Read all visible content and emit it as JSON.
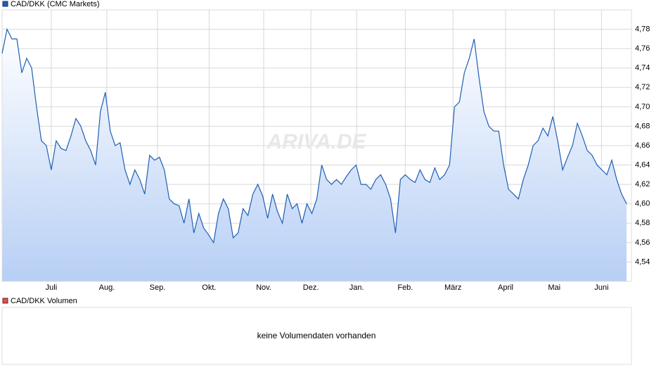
{
  "chart_data": [
    {
      "type": "line",
      "watermark": "ARIVA.DE",
      "series": [
        {
          "name": "CAD/DKK (CMC Markets)",
          "color": "#1f5fb4",
          "values": [
            4.755,
            4.78,
            4.77,
            4.77,
            4.735,
            4.75,
            4.74,
            4.7,
            4.665,
            4.66,
            4.635,
            4.665,
            4.657,
            4.655,
            4.67,
            4.688,
            4.68,
            4.665,
            4.655,
            4.64,
            4.695,
            4.715,
            4.675,
            4.66,
            4.663,
            4.635,
            4.62,
            4.635,
            4.625,
            4.61,
            4.65,
            4.645,
            4.648,
            4.635,
            4.605,
            4.6,
            4.598,
            4.58,
            4.605,
            4.57,
            4.59,
            4.575,
            4.568,
            4.56,
            4.59,
            4.605,
            4.595,
            4.565,
            4.57,
            4.595,
            4.588,
            4.61,
            4.62,
            4.608,
            4.585,
            4.61,
            4.592,
            4.58,
            4.61,
            4.595,
            4.6,
            4.58,
            4.6,
            4.59,
            4.605,
            4.64,
            4.625,
            4.62,
            4.625,
            4.62,
            4.628,
            4.635,
            4.64,
            4.62,
            4.62,
            4.615,
            4.625,
            4.63,
            4.62,
            4.605,
            4.57,
            4.625,
            4.63,
            4.625,
            4.622,
            4.635,
            4.625,
            4.622,
            4.637,
            4.625,
            4.63,
            4.64,
            4.7,
            4.705,
            4.735,
            4.75,
            4.77,
            4.73,
            4.695,
            4.68,
            4.675,
            4.675,
            4.64,
            4.615,
            4.61,
            4.605,
            4.625,
            4.64,
            4.66,
            4.665,
            4.678,
            4.67,
            4.69,
            4.665,
            4.635,
            4.648,
            4.66,
            4.683,
            4.67,
            4.655,
            4.65,
            4.64,
            4.635,
            4.63,
            4.645,
            4.625,
            4.61,
            4.6
          ]
        }
      ],
      "xlim": [
        0,
        128
      ],
      "xticks": [
        {
          "value": 10.0,
          "label": "Juli"
        },
        {
          "value": 21.3,
          "label": "Aug."
        },
        {
          "value": 31.6,
          "label": "Sep."
        },
        {
          "value": 42.1,
          "label": "Okt."
        },
        {
          "value": 53.2,
          "label": "Nov."
        },
        {
          "value": 62.8,
          "label": "Dez."
        },
        {
          "value": 72.1,
          "label": "Jan."
        },
        {
          "value": 82.0,
          "label": "Feb."
        },
        {
          "value": 91.7,
          "label": "März"
        },
        {
          "value": 102.4,
          "label": "April"
        },
        {
          "value": 112.3,
          "label": "Mai"
        },
        {
          "value": 121.9,
          "label": "Juni"
        }
      ],
      "ylim": [
        4.52,
        4.8
      ],
      "yticks": [
        {
          "value": 4.54,
          "label": "4,54"
        },
        {
          "value": 4.56,
          "label": "4,56"
        },
        {
          "value": 4.58,
          "label": "4,58"
        },
        {
          "value": 4.6,
          "label": "4,60"
        },
        {
          "value": 4.62,
          "label": "4,62"
        },
        {
          "value": 4.64,
          "label": "4,64"
        },
        {
          "value": 4.66,
          "label": "4,66"
        },
        {
          "value": 4.68,
          "label": "4,68"
        },
        {
          "value": 4.7,
          "label": "4,70"
        },
        {
          "value": 4.72,
          "label": "4,72"
        },
        {
          "value": 4.74,
          "label": "4,74"
        },
        {
          "value": 4.76,
          "label": "4,76"
        },
        {
          "value": 4.78,
          "label": "4,78"
        }
      ],
      "grid": true
    },
    {
      "type": "bar",
      "series": [
        {
          "name": "CAD/DKK Volumen",
          "color": "#d9534f",
          "values": []
        }
      ],
      "message": "keine Volumendaten vorhanden"
    }
  ]
}
